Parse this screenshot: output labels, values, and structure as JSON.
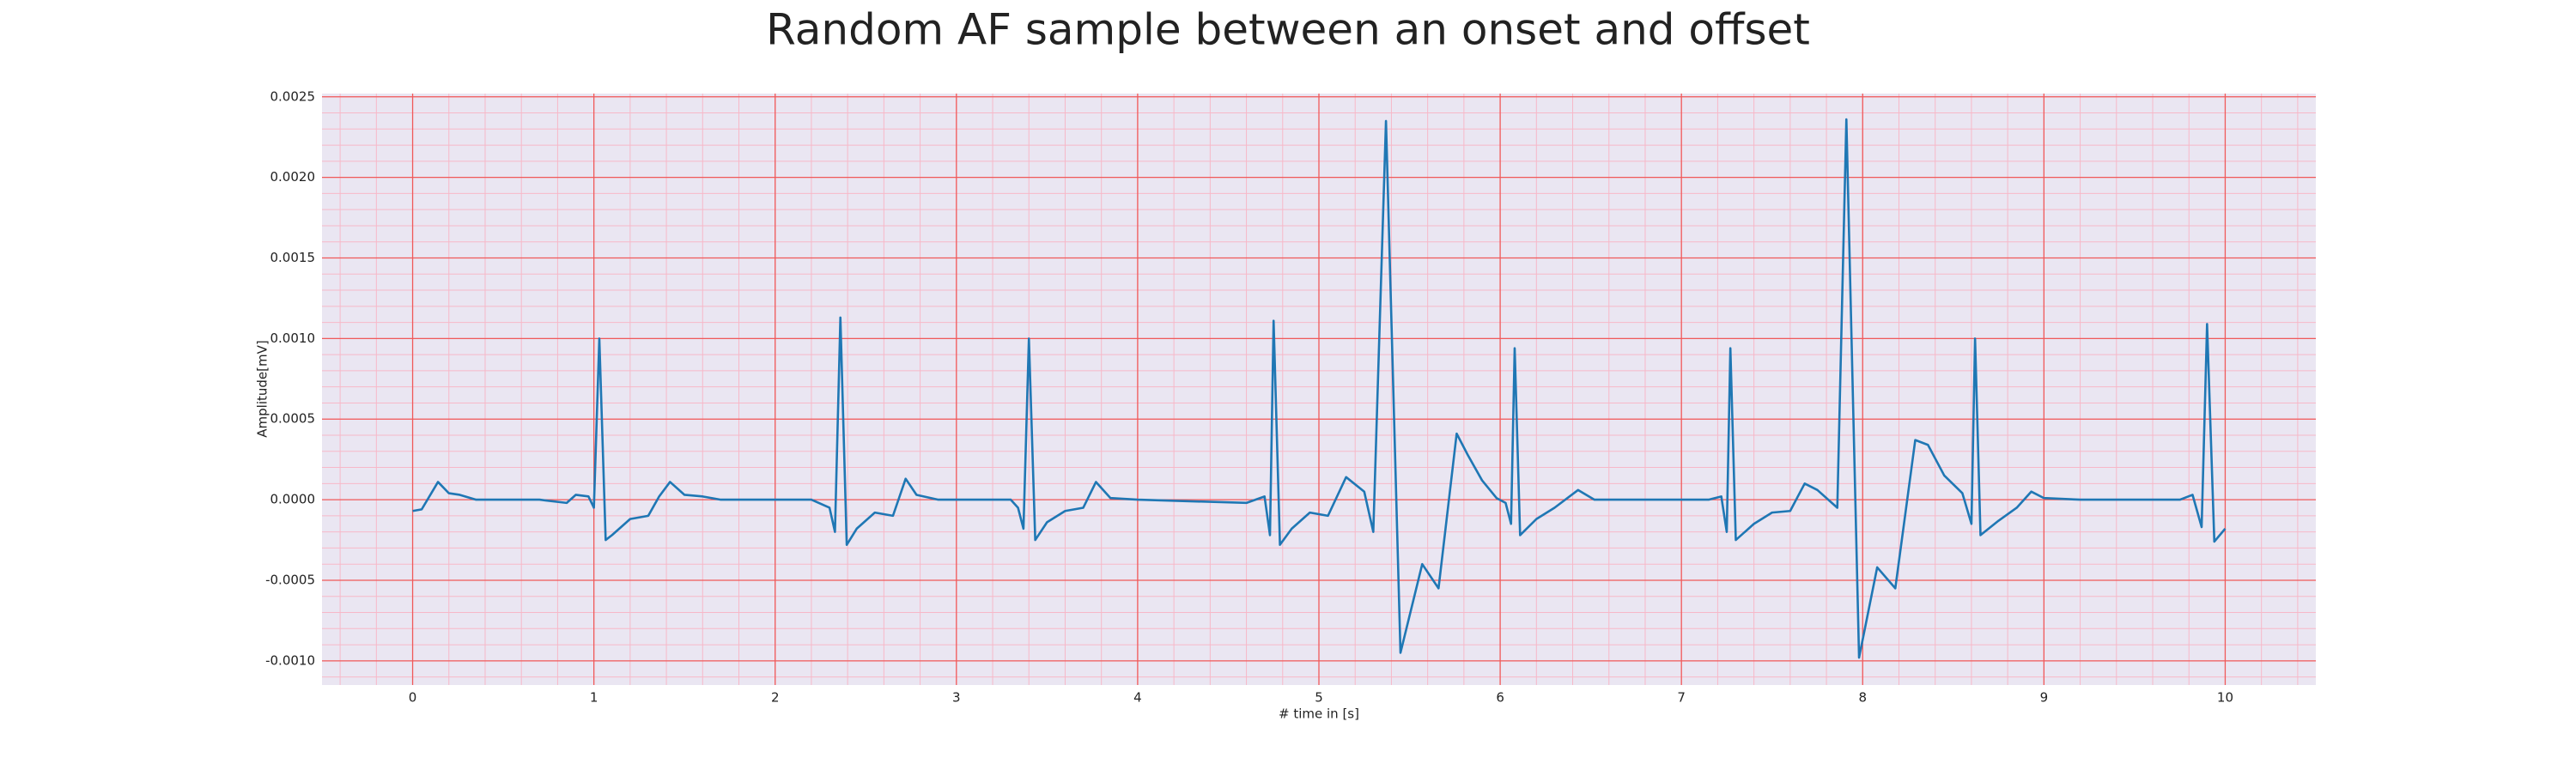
{
  "chart_data": {
    "type": "line",
    "title": "Random AF sample between an onset and offset",
    "xlabel": "# time in [s]",
    "ylabel": "Amplitude[mV]",
    "x": [
      0,
      0.05,
      0.14,
      0.2,
      0.26,
      0.35,
      0.7,
      0.85,
      0.9,
      0.97,
      1.0,
      1.03,
      1.065,
      1.1,
      1.2,
      1.3,
      1.36,
      1.42,
      1.5,
      1.6,
      1.7,
      2.2,
      2.3,
      2.33,
      2.36,
      2.395,
      2.45,
      2.55,
      2.65,
      2.72,
      2.78,
      2.9,
      3.3,
      3.34,
      3.37,
      3.4,
      3.435,
      3.5,
      3.6,
      3.7,
      3.77,
      3.85,
      4.0,
      4.6,
      4.7,
      4.73,
      4.75,
      4.785,
      4.85,
      4.95,
      5.05,
      5.15,
      5.25,
      5.3,
      5.37,
      5.45,
      5.57,
      5.66,
      5.76,
      5.82,
      5.9,
      5.98,
      6.03,
      6.06,
      6.08,
      6.11,
      6.2,
      6.3,
      6.43,
      6.52,
      7.15,
      7.22,
      7.25,
      7.27,
      7.3,
      7.4,
      7.5,
      7.6,
      7.68,
      7.75,
      7.86,
      7.91,
      7.98,
      8.08,
      8.18,
      8.29,
      8.36,
      8.45,
      8.55,
      8.6,
      8.62,
      8.65,
      8.75,
      8.85,
      8.93,
      9.0,
      9.2,
      9.75,
      9.82,
      9.87,
      9.9,
      9.94,
      10.0
    ],
    "values": [
      -7e-05,
      -6e-05,
      0.00011,
      4e-05,
      3e-05,
      0,
      0,
      -2e-05,
      3e-05,
      2e-05,
      -5e-05,
      0.001,
      -0.00025,
      -0.00022,
      -0.00012,
      -0.0001,
      2e-05,
      0.00011,
      3e-05,
      2e-05,
      0,
      0,
      -5e-05,
      -0.0002,
      0.00113,
      -0.00028,
      -0.00018,
      -8e-05,
      -0.0001,
      0.00013,
      3e-05,
      0,
      0,
      -5e-05,
      -0.00018,
      0.001,
      -0.00025,
      -0.00014,
      -7e-05,
      -5e-05,
      0.00011,
      1e-05,
      0,
      -2e-05,
      2e-05,
      -0.00022,
      0.00111,
      -0.00028,
      -0.00018,
      -8e-05,
      -0.0001,
      0.00014,
      5e-05,
      -0.0002,
      0.00235,
      -0.00095,
      -0.0004,
      -0.00055,
      0.00041,
      0.00028,
      0.00012,
      1e-05,
      -2e-05,
      -0.00015,
      0.00094,
      -0.00022,
      -0.00012,
      -5e-05,
      6e-05,
      0,
      0,
      2e-05,
      -0.0002,
      0.00094,
      -0.00025,
      -0.00015,
      -8e-05,
      -7e-05,
      0.0001,
      6e-05,
      -5e-05,
      0.00236,
      -0.00098,
      -0.00042,
      -0.00055,
      0.00037,
      0.00034,
      0.00015,
      4e-05,
      -0.00015,
      0.001,
      -0.00022,
      -0.00013,
      -5e-05,
      5e-05,
      1e-05,
      0,
      0,
      3e-05,
      -0.00017,
      0.00109,
      -0.00026,
      -0.00018
    ],
    "color": "#1f77b4",
    "xlim": [
      -0.5,
      10.5
    ],
    "ylim": [
      -0.00115,
      0.00252
    ],
    "xticks": [
      0,
      1,
      2,
      3,
      4,
      5,
      6,
      7,
      8,
      9,
      10
    ],
    "yticks": [
      {
        "value": -0.001,
        "label": "-0.0010"
      },
      -0.0005,
      {
        "value": 0,
        "label": "0.0000"
      },
      0.0005,
      {
        "value": 0.001,
        "label": "0.0010"
      },
      0.0015,
      {
        "value": 0.002,
        "label": "0.0020"
      },
      0.0025
    ],
    "grid": true,
    "minor_grid": true
  }
}
